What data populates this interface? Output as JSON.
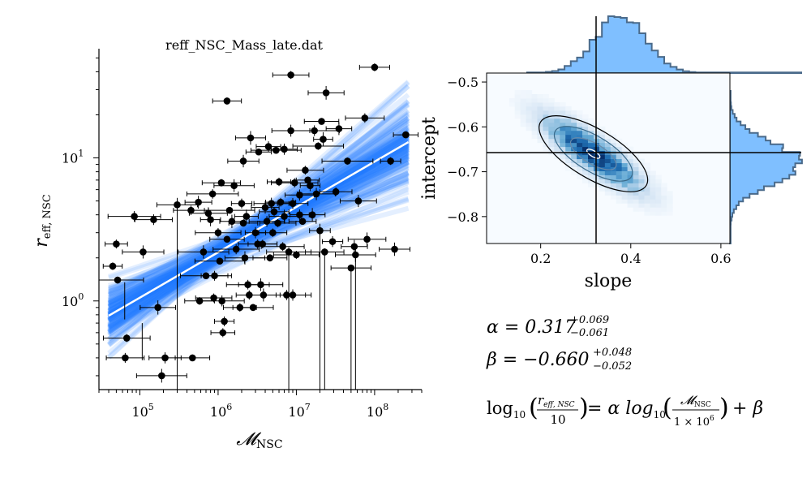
{
  "chart_data": [
    {
      "type": "scatter",
      "title": "reff_NSC_Mass_late.dat",
      "xlabel": "𝓜",
      "xlabel_sub": "NSC",
      "ylabel": "r",
      "ylabel_sub": "eff, NSC",
      "xscale": "log",
      "yscale": "log",
      "xlim": [
        30000,
        400000000
      ],
      "ylim": [
        0.24,
        58
      ],
      "xticks": [
        {
          "value": 100000,
          "base": "10",
          "exp": "5"
        },
        {
          "value": 1000000,
          "base": "10",
          "exp": "6"
        },
        {
          "value": 10000000,
          "base": "10",
          "exp": "7"
        },
        {
          "value": 100000000,
          "base": "10",
          "exp": "8"
        }
      ],
      "yticks": [
        {
          "value": 1,
          "base": "10",
          "exp": "0"
        },
        {
          "value": 10,
          "base": "10",
          "exp": "1"
        }
      ],
      "fit": {
        "x_range": [
          40000,
          270000000
        ],
        "slope": 0.317,
        "intercept": -0.66,
        "pivot_x": 1000000,
        "pivot_y": 10
      },
      "colors": {
        "band": "#1f7fff",
        "fit_line": "#ffffff",
        "points": "#000000"
      },
      "points": [
        [
          45000,
          1.75
        ],
        [
          50000,
          2.5
        ],
        [
          52000,
          1.4
        ],
        [
          65000,
          0.4
        ],
        [
          68000,
          0.55
        ],
        [
          85000,
          3.9
        ],
        [
          110000,
          2.2
        ],
        [
          150000,
          3.7
        ],
        [
          170000,
          0.9
        ],
        [
          190000,
          0.3
        ],
        [
          210000,
          0.4
        ],
        [
          300000,
          4.7
        ],
        [
          450000,
          4.3
        ],
        [
          470000,
          0.4
        ],
        [
          560000,
          4.9
        ],
        [
          580000,
          1.0
        ],
        [
          650000,
          2.2
        ],
        [
          700000,
          1.5
        ],
        [
          750000,
          4.1
        ],
        [
          800000,
          3.7
        ],
        [
          850000,
          5.6
        ],
        [
          880000,
          1.05
        ],
        [
          900000,
          1.5
        ],
        [
          1000000,
          3.0
        ],
        [
          1050000,
          1.9
        ],
        [
          1100000,
          6.7
        ],
        [
          1120000,
          1.0
        ],
        [
          1150000,
          0.6
        ],
        [
          1200000,
          0.72
        ],
        [
          1300000,
          2.7
        ],
        [
          1400000,
          4.3
        ],
        [
          1500000,
          3.6
        ],
        [
          1600000,
          6.4
        ],
        [
          1700000,
          2.3
        ],
        [
          1900000,
          0.9
        ],
        [
          2000000,
          4.8
        ],
        [
          2100000,
          3.5
        ],
        [
          2200000,
          2.0
        ],
        [
          2300000,
          3.9
        ],
        [
          2400000,
          1.3
        ],
        [
          2500000,
          1.1
        ],
        [
          2600000,
          13.8
        ],
        [
          2800000,
          0.9
        ],
        [
          3000000,
          3.0
        ],
        [
          3200000,
          2.5
        ],
        [
          3300000,
          11.0
        ],
        [
          3500000,
          1.3
        ],
        [
          3700000,
          2.5
        ],
        [
          3800000,
          1.1
        ],
        [
          4000000,
          4.5
        ],
        [
          4200000,
          3.6
        ],
        [
          4400000,
          12.0
        ],
        [
          4600000,
          2.0
        ],
        [
          4800000,
          4.8
        ],
        [
          5000000,
          3.0
        ],
        [
          5200000,
          4.2
        ],
        [
          5500000,
          11.3
        ],
        [
          5800000,
          3.5
        ],
        [
          6000000,
          6.8
        ],
        [
          6300000,
          4.9
        ],
        [
          6700000,
          2.4
        ],
        [
          7000000,
          3.9
        ],
        [
          7500000,
          1.1
        ],
        [
          8000000,
          2.2
        ],
        [
          8500000,
          15.5
        ],
        [
          9000000,
          1.1
        ],
        [
          9500000,
          6.7
        ],
        [
          10000000,
          2.1
        ],
        [
          11000000,
          5.5
        ],
        [
          12000000,
          3.6
        ],
        [
          13000000,
          8.2
        ],
        [
          14000000,
          7.0
        ],
        [
          15000000,
          6.4
        ],
        [
          16000000,
          4.0
        ],
        [
          17000000,
          15.5
        ],
        [
          18000000,
          5.6
        ],
        [
          19000000,
          12.1
        ],
        [
          20000000,
          3.1
        ],
        [
          21000000,
          18.0
        ],
        [
          22000000,
          13.5
        ],
        [
          23000000,
          2.2
        ],
        [
          24000000,
          28.5
        ],
        [
          29000000,
          2.6
        ],
        [
          32000000,
          5.8
        ],
        [
          35000000,
          16.0
        ],
        [
          45000000,
          9.5
        ],
        [
          50000000,
          1.7
        ],
        [
          55000000,
          2.4
        ],
        [
          57000000,
          2.1
        ],
        [
          62000000,
          5.0
        ],
        [
          75000000,
          19.0
        ],
        [
          80000000,
          2.7
        ],
        [
          100000000,
          43.0
        ],
        [
          160000000,
          9.5
        ],
        [
          180000000,
          2.3
        ],
        [
          250000000,
          14.5
        ],
        [
          8500000,
          38.0
        ],
        [
          1300000,
          25.0
        ],
        [
          7000000,
          11.5
        ],
        [
          2100000,
          9.5
        ],
        [
          9000000,
          4.8
        ],
        [
          11000000,
          4.0
        ]
      ]
    },
    {
      "type": "heatmap",
      "xlabel": "slope",
      "ylabel": "intercept",
      "xlim": [
        0.08,
        0.62
      ],
      "ylim": [
        -0.86,
        -0.48
      ],
      "xticks": [
        0.2,
        0.4,
        0.6
      ],
      "xtick_labels": [
        "0.2",
        "0.4",
        "0.6"
      ],
      "yticks": [
        -0.5,
        -0.6,
        -0.7,
        -0.8
      ],
      "ytick_labels": [
        "−0.5",
        "−0.6",
        "−0.7",
        "−0.8"
      ],
      "peak": {
        "slope": 0.317,
        "intercept": -0.66
      },
      "colors": {
        "hist_fill": "#7fbfff",
        "hist_edge": "#4a6a8a",
        "contour": "#000000"
      }
    }
  ],
  "results": {
    "alpha_lhs": "α = 0.317",
    "alpha_up": "+0.069",
    "alpha_lo": "−0.061",
    "beta_lhs": "β = −0.660",
    "beta_up": "+0.048",
    "beta_lo": "−0.052",
    "formula_log": "log",
    "formula_log_sub": "10",
    "formula_num": "r",
    "formula_num_sub": "eff, NSC",
    "formula_den": "10",
    "formula_mid": "= α log",
    "formula_rnum": "𝓜",
    "formula_rnum_sub": "NSC",
    "formula_rden": "1 × 10",
    "formula_rden_exp": "6",
    "formula_tail": "+ β"
  }
}
